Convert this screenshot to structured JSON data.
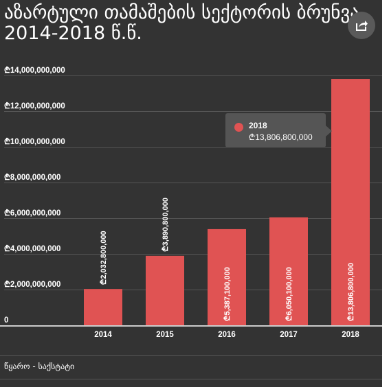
{
  "title_lines": [
    "აზარტული თამაშების სექტორის ბრუნვა",
    "2014-2018 წ.წ."
  ],
  "source": "წყარო - საქსტატი",
  "share_icon": "share-icon",
  "colors": {
    "background": "#333333",
    "bar": "#e05353",
    "grid": "#555555",
    "text": "#ffffff"
  },
  "tooltip": {
    "category": "2018",
    "value": "₾13,806,800,000"
  },
  "chart_data": {
    "type": "bar",
    "categories": [
      "2014",
      "2015",
      "2016",
      "2017",
      "2018"
    ],
    "values": [
      2032800000,
      3890800000,
      5387100000,
      6050100000,
      13806800000
    ],
    "data_labels": [
      "₾2,032,800,000",
      "₾3,890,800,000",
      "₾5,387,100,000",
      "₾6,050,100,000",
      "₾13,806,800,000"
    ],
    "yticks": [
      0,
      2000000000,
      4000000000,
      6000000000,
      8000000000,
      10000000000,
      12000000000,
      14000000000
    ],
    "ytick_labels": [
      "0",
      "₾2,000,000,000",
      "₾4,000,000,000",
      "₾6,000,000,000",
      "₾8,000,000,000",
      "₾10,000,000,000",
      "₾12,000,000,000",
      "₾14,000,000,000"
    ],
    "ylim": [
      0,
      14000000000
    ],
    "grid": true,
    "xlabel": "",
    "ylabel": ""
  }
}
